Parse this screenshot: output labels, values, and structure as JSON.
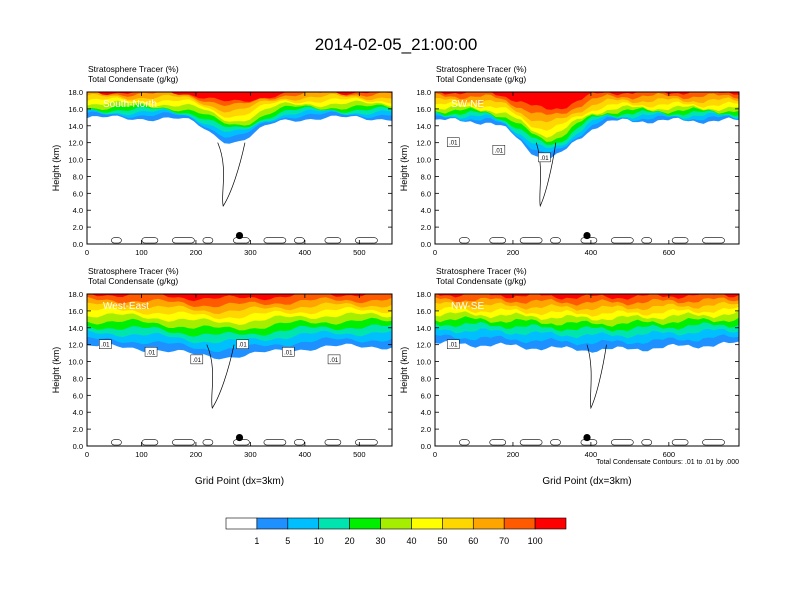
{
  "figure_title": "2014-02-05_21:00:00",
  "contour_note": "Total Condensate Contours: .01 to .01 by .000",
  "colors": {
    "levels": [
      "#ffffff",
      "#1e90ff",
      "#00bfff",
      "#00e5b0",
      "#00ee00",
      "#a6ee00",
      "#ffff00",
      "#ffd700",
      "#ffa500",
      "#ff5a00",
      "#ff0000"
    ],
    "contour": "#000000",
    "marker": "#000000"
  },
  "colorbar": {
    "labels": [
      "1",
      "5",
      "10",
      "20",
      "30",
      "40",
      "50",
      "60",
      "70",
      "100"
    ]
  },
  "chart_data": [
    {
      "type": "heatmap",
      "panel_label": "South-North",
      "title_line1": "Stratosphere Tracer   (%)",
      "title_line2": "Total Condensate   (g/kg)",
      "ylabel": "Height (km)",
      "xlabel": "",
      "xlim": [
        0,
        560
      ],
      "ylim": [
        0,
        18
      ],
      "xticks": [
        0,
        100,
        200,
        300,
        400,
        500
      ],
      "yticks": [
        "0.0",
        "2.0",
        "4.0",
        "6.0",
        "8.0",
        "10.0",
        "12.0",
        "14.0",
        "16.0",
        "18.0"
      ],
      "marker_x": 280,
      "tracer_bands_base_km": [
        14.9,
        15.3,
        15.6,
        15.9,
        16.2,
        16.6,
        17.0,
        17.4,
        17.8,
        18.0
      ],
      "dip_center_x": 270,
      "dip_width": 60,
      "dip_depth_km": 2.8,
      "contour_labels": []
    },
    {
      "type": "heatmap",
      "panel_label": "SW-NE",
      "title_line1": "Stratosphere Tracer   (%)",
      "title_line2": "Total Condensate   (g/kg)",
      "ylabel": "Height (km)",
      "xlabel": "",
      "xlim": [
        0,
        780
      ],
      "ylim": [
        0,
        18
      ],
      "xticks": [
        0,
        200,
        400,
        600
      ],
      "yticks": [
        "0.0",
        "2.0",
        "4.0",
        "6.0",
        "8.0",
        "10.0",
        "12.0",
        "14.0",
        "16.0",
        "18.0"
      ],
      "marker_x": 390,
      "tracer_bands_base_km": [
        14.6,
        14.9,
        15.2,
        15.5,
        15.8,
        16.1,
        16.5,
        17.0,
        17.5,
        18.0
      ],
      "dip_center_x": 290,
      "dip_width": 90,
      "dip_depth_km": 4.5,
      "contour_labels": [
        ".01",
        ".01",
        ".01"
      ]
    },
    {
      "type": "heatmap",
      "panel_label": "West-East",
      "title_line1": "Stratosphere Tracer   (%)",
      "title_line2": "Total Condensate   (g/kg)",
      "ylabel": "Height (km)",
      "xlabel": "Grid Point (dx=3km)",
      "xlim": [
        0,
        560
      ],
      "ylim": [
        0,
        18
      ],
      "xticks": [
        0,
        100,
        200,
        300,
        400,
        500
      ],
      "yticks": [
        "0.0",
        "2.0",
        "4.0",
        "6.0",
        "8.0",
        "10.0",
        "12.0",
        "14.0",
        "16.0",
        "18.0"
      ],
      "marker_x": 280,
      "tracer_bands_base_km": [
        11.8,
        12.6,
        13.4,
        14.1,
        14.8,
        15.5,
        16.1,
        16.7,
        17.3,
        18.0
      ],
      "dip_center_x": 250,
      "dip_width": 120,
      "dip_depth_km": 1.2,
      "contour_labels": [
        ".01",
        ".01",
        ".01",
        ".01",
        ".01",
        ".01"
      ]
    },
    {
      "type": "heatmap",
      "panel_label": "NW-SE",
      "title_line1": "Stratosphere Tracer   (%)",
      "title_line2": "Total Condensate   (g/kg)",
      "ylabel": "Height (km)",
      "xlabel": "Grid Point (dx=3km)",
      "xlim": [
        0,
        780
      ],
      "ylim": [
        0,
        18
      ],
      "xticks": [
        0,
        200,
        400,
        600
      ],
      "yticks": [
        "0.0",
        "2.0",
        "4.0",
        "6.0",
        "8.0",
        "10.0",
        "12.0",
        "14.0",
        "16.0",
        "18.0"
      ],
      "marker_x": 390,
      "tracer_bands_base_km": [
        12.2,
        13.0,
        13.8,
        14.5,
        15.1,
        15.7,
        16.2,
        16.8,
        17.4,
        18.0
      ],
      "dip_center_x": 420,
      "dip_width": 260,
      "dip_depth_km": 0.8,
      "contour_labels": [
        ".01"
      ]
    }
  ]
}
